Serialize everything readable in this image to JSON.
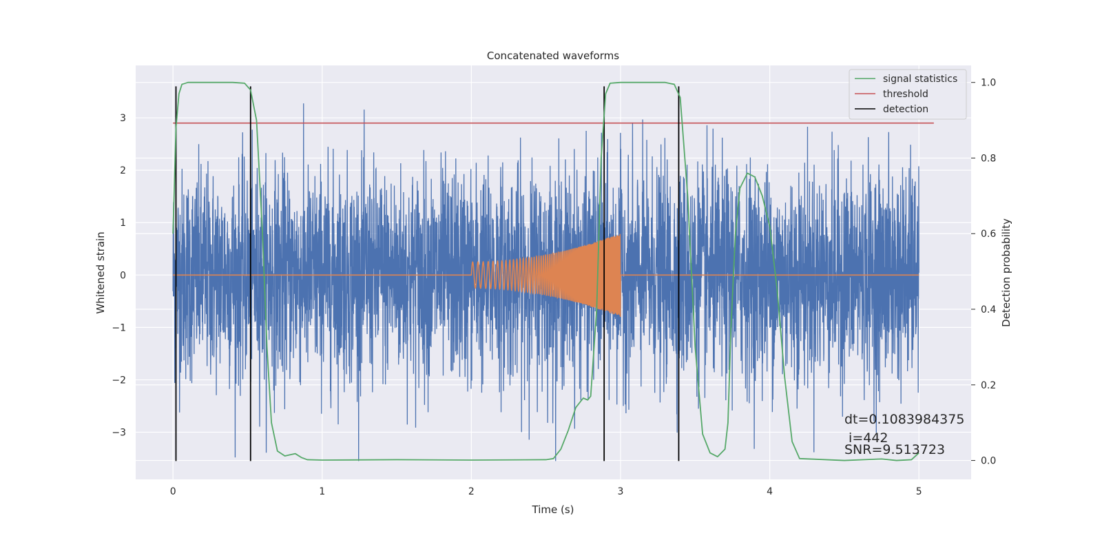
{
  "chart_data": {
    "type": "line",
    "title": "Concatenated waveforms",
    "xlabel": "Time (s)",
    "ylabel": "Whitened strain",
    "y2label": "Detection probability",
    "xlim": [
      -0.25,
      5.35
    ],
    "ylim": [
      -3.9,
      4.0
    ],
    "y2lim": [
      -0.05,
      1.045
    ],
    "x_ticks": [
      0,
      1,
      2,
      3,
      4,
      5
    ],
    "y_ticks": [
      -3,
      -2,
      -1,
      0,
      1,
      2,
      3
    ],
    "y2_ticks": [
      0.0,
      0.2,
      0.4,
      0.6,
      0.8,
      1.0
    ],
    "x_tick_labels": [
      "0",
      "1",
      "2",
      "3",
      "4",
      "5"
    ],
    "y_tick_labels": [
      "−3",
      "−2",
      "−1",
      "0",
      "1",
      "2",
      "3"
    ],
    "y2_tick_labels": [
      "0.0",
      "0.2",
      "0.4",
      "0.6",
      "0.8",
      "1.0"
    ],
    "grid": true,
    "legend_position": "top-right",
    "colors": {
      "strain": "#4c72b0",
      "template": "#dd8452",
      "signal_statistics": "#55a868",
      "threshold": "#c44e52",
      "detection": "#000000",
      "background": "#eaeaf2",
      "grid": "#ffffff"
    },
    "strain": {
      "t_start": 0.0,
      "t_end": 5.0,
      "noise_std": 1.0,
      "peak_range": [
        -3.55,
        3.6
      ]
    },
    "template": {
      "t_start": 2.0,
      "t_end": 3.0,
      "amplitude_start": 0.25,
      "amplitude_end": 0.8,
      "t_before": [
        0.0,
        2.0
      ],
      "t_after": [
        3.0,
        5.0
      ]
    },
    "signal_statistics": {
      "axis": "right",
      "points": [
        [
          0.0,
          0.6
        ],
        [
          0.02,
          0.88
        ],
        [
          0.04,
          0.97
        ],
        [
          0.06,
          0.995
        ],
        [
          0.1,
          1.0
        ],
        [
          0.2,
          1.0
        ],
        [
          0.3,
          1.0
        ],
        [
          0.4,
          1.0
        ],
        [
          0.48,
          0.998
        ],
        [
          0.52,
          0.98
        ],
        [
          0.56,
          0.9
        ],
        [
          0.6,
          0.6
        ],
        [
          0.63,
          0.3
        ],
        [
          0.66,
          0.1
        ],
        [
          0.7,
          0.025
        ],
        [
          0.75,
          0.012
        ],
        [
          0.82,
          0.018
        ],
        [
          0.86,
          0.008
        ],
        [
          0.9,
          0.002
        ],
        [
          1.0,
          0.001
        ],
        [
          1.5,
          0.002
        ],
        [
          2.0,
          0.001
        ],
        [
          2.5,
          0.002
        ],
        [
          2.55,
          0.005
        ],
        [
          2.6,
          0.03
        ],
        [
          2.65,
          0.08
        ],
        [
          2.7,
          0.14
        ],
        [
          2.75,
          0.165
        ],
        [
          2.78,
          0.16
        ],
        [
          2.8,
          0.17
        ],
        [
          2.84,
          0.4
        ],
        [
          2.87,
          0.8
        ],
        [
          2.9,
          0.97
        ],
        [
          2.93,
          0.998
        ],
        [
          3.0,
          1.0
        ],
        [
          3.2,
          1.0
        ],
        [
          3.3,
          1.0
        ],
        [
          3.36,
          0.995
        ],
        [
          3.4,
          0.96
        ],
        [
          3.45,
          0.7
        ],
        [
          3.5,
          0.3
        ],
        [
          3.55,
          0.07
        ],
        [
          3.6,
          0.02
        ],
        [
          3.65,
          0.01
        ],
        [
          3.7,
          0.03
        ],
        [
          3.72,
          0.1
        ],
        [
          3.74,
          0.35
        ],
        [
          3.77,
          0.6
        ],
        [
          3.8,
          0.72
        ],
        [
          3.85,
          0.76
        ],
        [
          3.9,
          0.75
        ],
        [
          3.95,
          0.7
        ],
        [
          4.0,
          0.62
        ],
        [
          4.05,
          0.45
        ],
        [
          4.1,
          0.22
        ],
        [
          4.15,
          0.05
        ],
        [
          4.2,
          0.005
        ],
        [
          4.5,
          0.0
        ],
        [
          4.75,
          0.004
        ],
        [
          4.85,
          0.0
        ],
        [
          4.95,
          0.002
        ],
        [
          5.0,
          0.02
        ]
      ]
    },
    "threshold": {
      "axis": "left",
      "value": 2.9,
      "x_range": [
        0.0,
        5.1
      ]
    },
    "detections": [
      0.02,
      0.52,
      2.89,
      3.39
    ],
    "detection_y_range": [
      -3.55,
      3.6
    ],
    "series": [
      {
        "name": "signal statistics",
        "key": "signal_statistics"
      },
      {
        "name": "threshold",
        "key": "threshold"
      },
      {
        "name": "detection",
        "key": "detection"
      }
    ],
    "annotations": {
      "dt": "dt=0.1083984375",
      "i": " i=442",
      "snr": "SNR=9.513723"
    }
  }
}
